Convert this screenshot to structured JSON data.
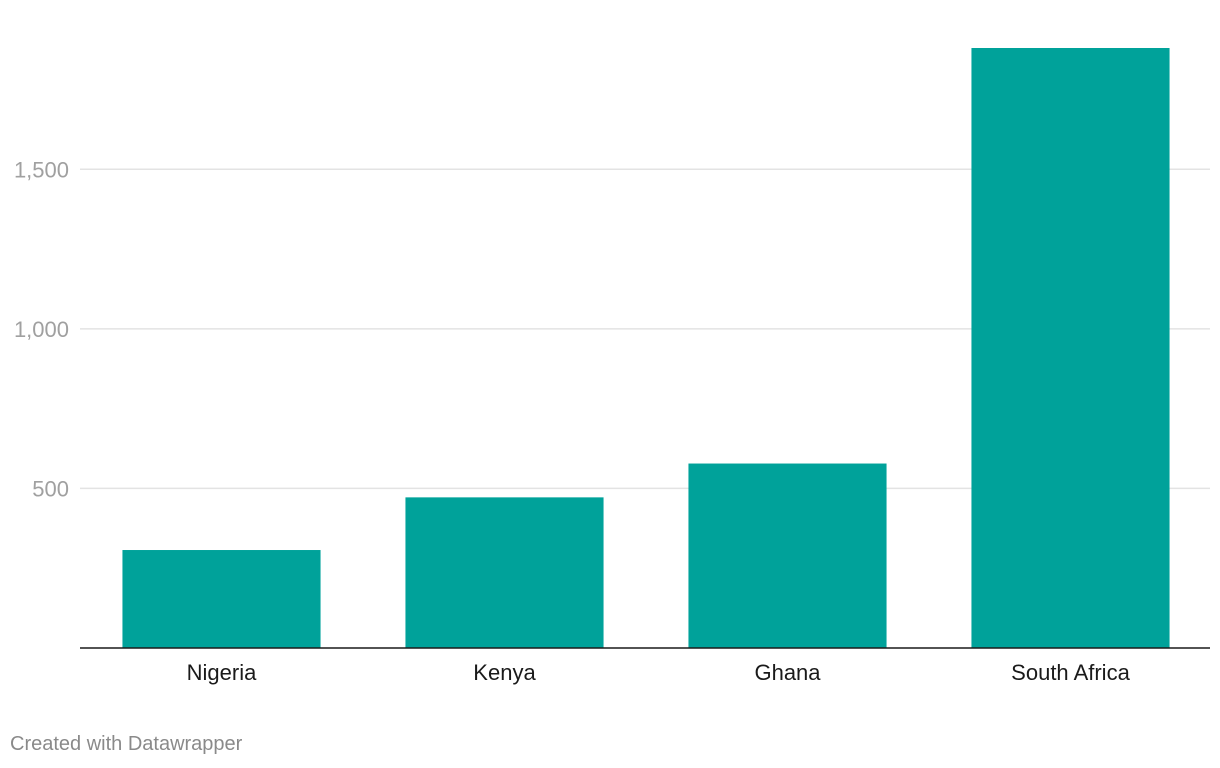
{
  "chart_data": {
    "type": "bar",
    "categories": [
      "Nigeria",
      "Kenya",
      "Ghana",
      "South Africa"
    ],
    "values": [
      307,
      472,
      578,
      1880
    ],
    "ylim": [
      0,
      1880
    ],
    "yticks": [
      500,
      1000,
      1500
    ],
    "ytick_labels": [
      "500",
      "1,000",
      "1,500"
    ],
    "title": "",
    "xlabel": "",
    "ylabel": "",
    "grid": true,
    "legend": "none",
    "bar_color": "#00a29a"
  },
  "footer": {
    "credit": "Created with Datawrapper"
  }
}
